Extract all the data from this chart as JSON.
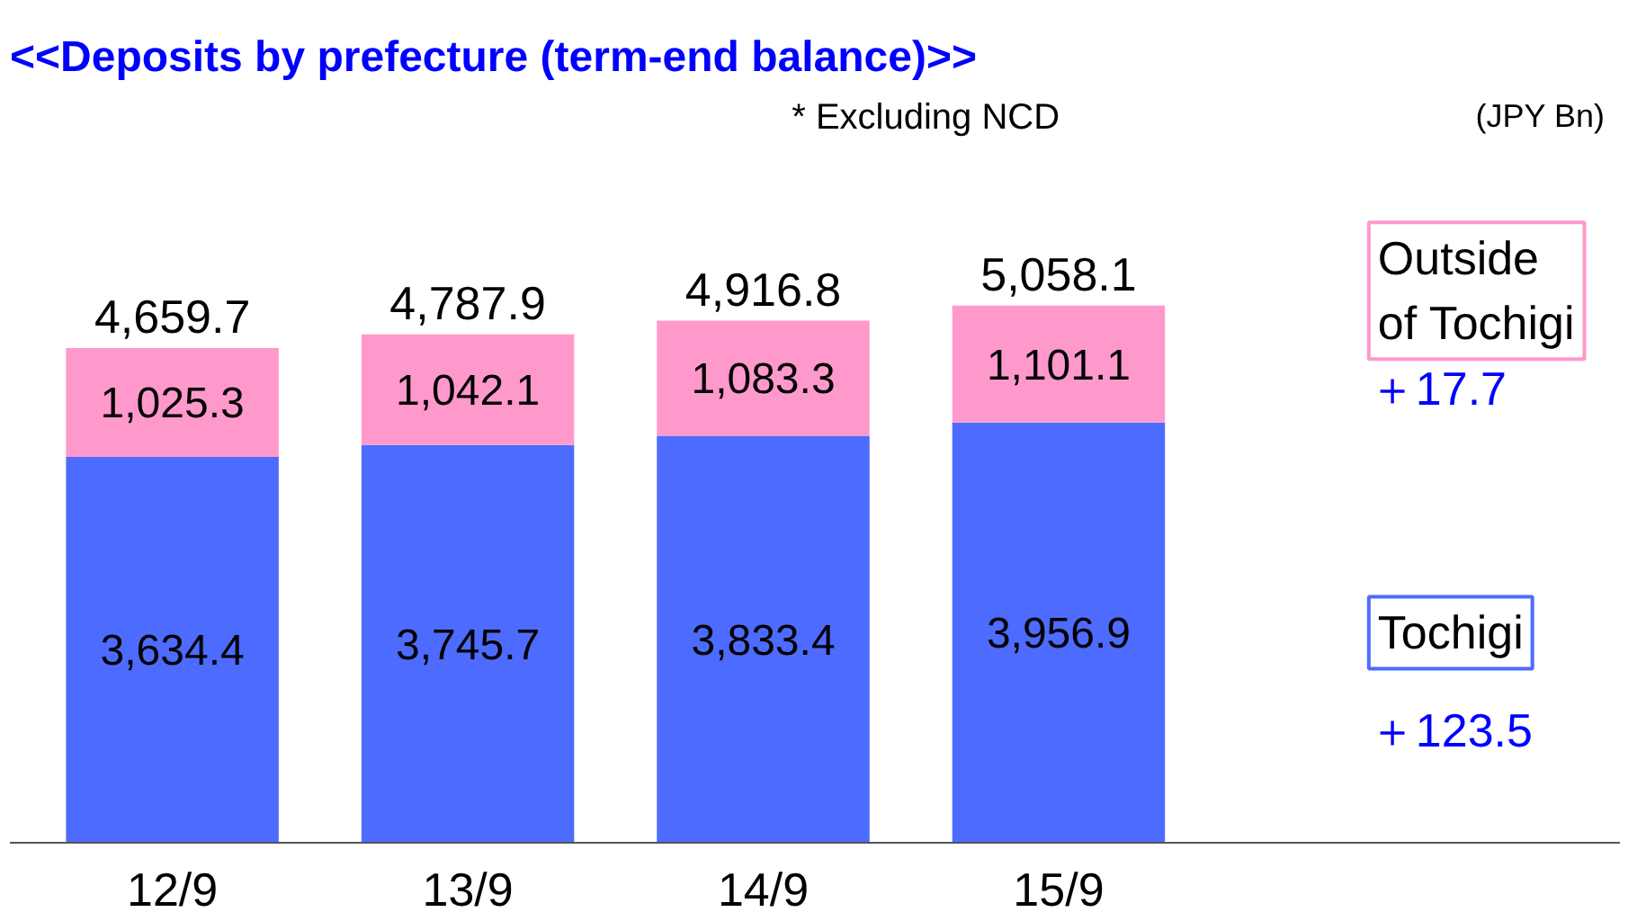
{
  "chart_data": {
    "type": "bar",
    "title": "<<Deposits by prefecture (term-end balance)>>",
    "stacked": true,
    "legend": "right",
    "grid": false,
    "tick_labels": "x",
    "categories": [
      "12/9",
      "13/9",
      "14/9",
      "15/9"
    ],
    "series": [
      {
        "name": "Tochigi",
        "color": "#4d6bff",
        "values": [
          3634.4,
          3745.7,
          3833.4,
          3956.9
        ],
        "value_labels": [
          "3,634.4",
          "3,745.7",
          "3,833.4",
          "3,956.9"
        ]
      },
      {
        "name": "Outside\nof Tochigi",
        "color": "#ff99cc",
        "values": [
          1025.3,
          1042.1,
          1083.3,
          1101.1
        ],
        "value_labels": [
          "1,025.3",
          "1,042.1",
          "1,083.3",
          "1,101.1"
        ]
      }
    ],
    "totals": [
      "4,659.7",
      "4,787.9",
      "4,916.8",
      "5,058.1"
    ],
    "annotations": [
      "* Excluding NCD",
      "(JPY Bn)",
      "＋123.5",
      "＋17.7"
    ]
  }
}
